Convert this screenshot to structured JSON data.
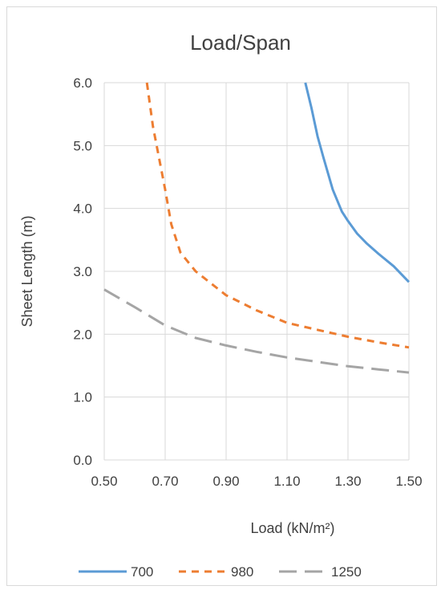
{
  "chart_data": {
    "type": "line",
    "title": "Load/Span",
    "xlabel": "Load (kN/m²)",
    "ylabel": "Sheet Length (m)",
    "xlim": [
      0.5,
      1.5
    ],
    "ylim": [
      0.0,
      6.0
    ],
    "x_ticks": [
      "0.50",
      "0.70",
      "0.90",
      "1.10",
      "1.30",
      "1.50"
    ],
    "y_ticks": [
      "0.0",
      "1.0",
      "2.0",
      "3.0",
      "4.0",
      "5.0",
      "6.0"
    ],
    "grid": true,
    "legend_position": "bottom",
    "series": [
      {
        "name": "700",
        "color": "#5b9bd5",
        "dash": "solid",
        "x": [
          1.16,
          1.18,
          1.2,
          1.22,
          1.25,
          1.28,
          1.3,
          1.33,
          1.36,
          1.4,
          1.45,
          1.5
        ],
        "y": [
          6.0,
          5.6,
          5.15,
          4.8,
          4.3,
          3.95,
          3.8,
          3.6,
          3.45,
          3.28,
          3.08,
          2.83
        ]
      },
      {
        "name": "980",
        "color": "#ed7d31",
        "dash": "dash",
        "x": [
          0.64,
          0.66,
          0.68,
          0.7,
          0.72,
          0.75,
          0.8,
          0.9,
          1.0,
          1.1,
          1.2,
          1.3,
          1.4,
          1.5
        ],
        "y": [
          6.0,
          5.3,
          4.8,
          4.3,
          3.75,
          3.3,
          3.0,
          2.62,
          2.38,
          2.18,
          2.07,
          1.96,
          1.87,
          1.79
        ]
      },
      {
        "name": "1250",
        "color": "#a5a5a5",
        "dash": "longdash",
        "x": [
          0.5,
          0.6,
          0.7,
          0.8,
          0.9,
          1.0,
          1.1,
          1.2,
          1.3,
          1.4,
          1.5
        ],
        "y": [
          2.71,
          2.43,
          2.14,
          1.94,
          1.82,
          1.72,
          1.63,
          1.56,
          1.49,
          1.44,
          1.39
        ]
      }
    ]
  }
}
